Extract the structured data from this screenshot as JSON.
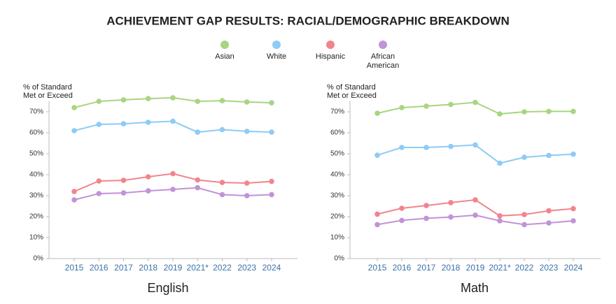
{
  "title": "ACHIEVEMENT GAP RESULTS: RACIAL/DEMOGRAPHIC BREAKDOWN",
  "chart_data": [
    {
      "type": "line",
      "title": "English",
      "y_label": "% of Standard Met or Exceed",
      "categories": [
        "2015",
        "2016",
        "2017",
        "2018",
        "2019",
        "2021*",
        "2022",
        "2023",
        "2024"
      ],
      "ylim": [
        0,
        78
      ],
      "yticks": [
        {
          "value": 0,
          "label": "0%"
        },
        {
          "value": 10,
          "label": "10%"
        },
        {
          "value": 20,
          "label": "20%"
        },
        {
          "value": 30,
          "label": "30%"
        },
        {
          "value": 40,
          "label": "40%"
        },
        {
          "value": 50,
          "label": "50%"
        },
        {
          "value": 60,
          "label": "60%"
        },
        {
          "value": 70,
          "label": "70%"
        }
      ],
      "series": [
        {
          "name": "Asian",
          "color": "#a8d580",
          "values": [
            72,
            75,
            75.7,
            76.3,
            76.7,
            75,
            75.3,
            74.7,
            74.3
          ]
        },
        {
          "name": "White",
          "color": "#8ecbf5",
          "values": [
            61,
            64,
            64.3,
            65,
            65.5,
            60.3,
            61.5,
            60.7,
            60.3
          ]
        },
        {
          "name": "Hispanic",
          "color": "#f2848c",
          "values": [
            32,
            37,
            37.3,
            39,
            40.5,
            37.5,
            36.3,
            36,
            36.8
          ]
        },
        {
          "name": "African American",
          "color": "#c193d8",
          "values": [
            28,
            31,
            31.3,
            32.3,
            33,
            33.8,
            30.5,
            30,
            30.5
          ]
        }
      ]
    },
    {
      "type": "line",
      "title": "Math",
      "y_label": "% of Standard Met or Exceed",
      "categories": [
        "2015",
        "2016",
        "2017",
        "2018",
        "2019",
        "2021*",
        "2022",
        "2023",
        "2024"
      ],
      "ylim": [
        0,
        78
      ],
      "yticks": [
        {
          "value": 0,
          "label": "0%"
        },
        {
          "value": 10,
          "label": "10%"
        },
        {
          "value": 20,
          "label": "20%"
        },
        {
          "value": 30,
          "label": "30%"
        },
        {
          "value": 40,
          "label": "40%"
        },
        {
          "value": 50,
          "label": "50%"
        },
        {
          "value": 60,
          "label": "60%"
        },
        {
          "value": 70,
          "label": "70%"
        }
      ],
      "series": [
        {
          "name": "Asian",
          "color": "#a8d580",
          "values": [
            69.3,
            72,
            72.7,
            73.5,
            74.5,
            69,
            70,
            70.2,
            70.2
          ]
        },
        {
          "name": "White",
          "color": "#8ecbf5",
          "values": [
            49.3,
            53,
            53,
            53.5,
            54.2,
            45.5,
            48.3,
            49.2,
            49.8
          ]
        },
        {
          "name": "Hispanic",
          "color": "#f2848c",
          "values": [
            21.2,
            24,
            25.3,
            26.7,
            28,
            20.4,
            21,
            22.8,
            23.8
          ]
        },
        {
          "name": "African American",
          "color": "#c193d8",
          "values": [
            16.2,
            18.2,
            19.2,
            19.8,
            20.7,
            18,
            16.2,
            17,
            18
          ]
        }
      ]
    }
  ]
}
